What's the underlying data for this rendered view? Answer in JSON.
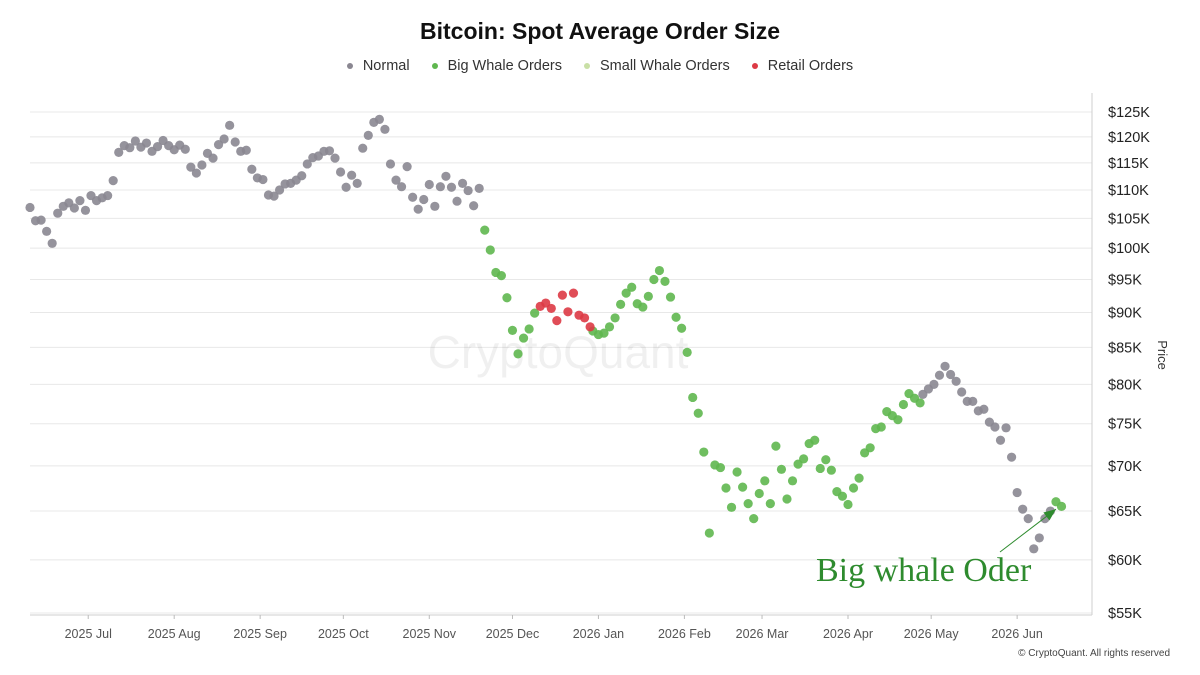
{
  "colors": {
    "normal": "#8a8791",
    "big_whale": "#5fb74f",
    "small_whale": "#c9e0a6",
    "retail": "#dd3a45",
    "grid": "#e8e8e8",
    "annotation": "#2e8b2e"
  },
  "watermark": "CryptoQuant",
  "copyright": "© CryptoQuant. All rights reserved",
  "chart_data": {
    "type": "scatter",
    "title": "Bitcoin: Spot Average Order Size",
    "ylabel": "Price",
    "yscale": "log",
    "ylim": [
      55000,
      125000
    ],
    "y_ticks": [
      55000,
      60000,
      65000,
      70000,
      75000,
      80000,
      85000,
      90000,
      95000,
      100000,
      105000,
      110000,
      115000,
      120000,
      125000
    ],
    "y_tick_labels": [
      "$55K",
      "$60K",
      "$65K",
      "$70K",
      "$75K",
      "$80K",
      "$85K",
      "$90K",
      "$95K",
      "$100K",
      "$105K",
      "$110K",
      "$115K",
      "$120K",
      "$125K"
    ],
    "xlim": [
      "2025-06-10",
      "2026-06-28"
    ],
    "x_ticks": [
      "2025-07-01",
      "2025-08-01",
      "2025-09-01",
      "2025-10-01",
      "2025-11-01",
      "2025-12-01",
      "2026-01-01",
      "2026-02-01",
      "2026-03-01",
      "2026-04-01",
      "2026-05-01",
      "2026-06-01"
    ],
    "x_tick_labels": [
      "2025 Jul",
      "2025 Aug",
      "2025 Sep",
      "2025 Oct",
      "2025 Nov",
      "2025 Dec",
      "2026 Jan",
      "2026 Feb",
      "2026 Mar",
      "2026 Apr",
      "2026 May",
      "2026 Jun"
    ],
    "grid": true,
    "legend_position": "top-center",
    "series": [
      {
        "name": "Normal",
        "color": "#8a8791",
        "points": [
          [
            "2025-06-10",
            106900
          ],
          [
            "2025-06-12",
            104600
          ],
          [
            "2025-06-14",
            104700
          ],
          [
            "2025-06-16",
            102800
          ],
          [
            "2025-06-18",
            100800
          ],
          [
            "2025-06-20",
            105900
          ],
          [
            "2025-06-22",
            107100
          ],
          [
            "2025-06-24",
            107700
          ],
          [
            "2025-06-26",
            106800
          ],
          [
            "2025-06-28",
            108100
          ],
          [
            "2025-06-30",
            106400
          ],
          [
            "2025-07-02",
            109000
          ],
          [
            "2025-07-04",
            108100
          ],
          [
            "2025-07-06",
            108600
          ],
          [
            "2025-07-08",
            109000
          ],
          [
            "2025-07-10",
            111700
          ],
          [
            "2025-07-12",
            117000
          ],
          [
            "2025-07-14",
            118300
          ],
          [
            "2025-07-16",
            117900
          ],
          [
            "2025-07-18",
            119200
          ],
          [
            "2025-07-20",
            118000
          ],
          [
            "2025-07-22",
            118800
          ],
          [
            "2025-07-24",
            117200
          ],
          [
            "2025-07-26",
            118100
          ],
          [
            "2025-07-28",
            119300
          ],
          [
            "2025-07-30",
            118300
          ],
          [
            "2025-08-01",
            117500
          ],
          [
            "2025-08-03",
            118400
          ],
          [
            "2025-08-05",
            117600
          ],
          [
            "2025-08-07",
            114200
          ],
          [
            "2025-08-09",
            113100
          ],
          [
            "2025-08-11",
            114600
          ],
          [
            "2025-08-13",
            116800
          ],
          [
            "2025-08-15",
            115900
          ],
          [
            "2025-08-17",
            118500
          ],
          [
            "2025-08-19",
            119600
          ],
          [
            "2025-08-21",
            122300
          ],
          [
            "2025-08-23",
            119000
          ],
          [
            "2025-08-25",
            117200
          ],
          [
            "2025-08-27",
            117400
          ],
          [
            "2025-08-29",
            113800
          ],
          [
            "2025-08-31",
            112200
          ],
          [
            "2025-09-02",
            111900
          ],
          [
            "2025-09-04",
            109100
          ],
          [
            "2025-09-06",
            108900
          ],
          [
            "2025-09-08",
            110000
          ],
          [
            "2025-09-10",
            111100
          ],
          [
            "2025-09-12",
            111200
          ],
          [
            "2025-09-14",
            111800
          ],
          [
            "2025-09-16",
            112600
          ],
          [
            "2025-09-18",
            114800
          ],
          [
            "2025-09-20",
            116000
          ],
          [
            "2025-09-22",
            116300
          ],
          [
            "2025-09-24",
            117200
          ],
          [
            "2025-09-26",
            117300
          ],
          [
            "2025-09-28",
            115900
          ],
          [
            "2025-09-30",
            113300
          ],
          [
            "2025-10-02",
            110500
          ],
          [
            "2025-10-04",
            112700
          ],
          [
            "2025-10-06",
            111200
          ],
          [
            "2025-10-08",
            117800
          ],
          [
            "2025-10-10",
            120300
          ],
          [
            "2025-10-12",
            122900
          ],
          [
            "2025-10-14",
            123500
          ],
          [
            "2025-10-16",
            121500
          ],
          [
            "2025-10-18",
            114800
          ],
          [
            "2025-10-20",
            111800
          ],
          [
            "2025-10-22",
            110600
          ],
          [
            "2025-10-24",
            114300
          ],
          [
            "2025-10-26",
            108700
          ],
          [
            "2025-10-28",
            106600
          ],
          [
            "2025-10-30",
            108300
          ],
          [
            "2025-11-01",
            111000
          ],
          [
            "2025-11-03",
            107100
          ],
          [
            "2025-11-05",
            110600
          ],
          [
            "2025-11-07",
            112500
          ],
          [
            "2025-11-09",
            110500
          ],
          [
            "2025-11-11",
            108000
          ],
          [
            "2025-11-13",
            111200
          ],
          [
            "2025-11-15",
            109900
          ],
          [
            "2025-11-17",
            107200
          ],
          [
            "2025-11-19",
            110300
          ],
          [
            "2026-04-28",
            78700
          ],
          [
            "2026-04-30",
            79400
          ],
          [
            "2026-05-02",
            80000
          ],
          [
            "2026-05-04",
            81200
          ],
          [
            "2026-05-06",
            82400
          ],
          [
            "2026-05-08",
            81300
          ],
          [
            "2026-05-10",
            80400
          ],
          [
            "2026-05-12",
            79000
          ],
          [
            "2026-05-14",
            77800
          ],
          [
            "2026-05-16",
            77800
          ],
          [
            "2026-05-18",
            76600
          ],
          [
            "2026-05-20",
            76800
          ],
          [
            "2026-05-22",
            75200
          ],
          [
            "2026-05-24",
            74600
          ],
          [
            "2026-05-26",
            73000
          ],
          [
            "2026-05-28",
            74500
          ],
          [
            "2026-05-30",
            71000
          ],
          [
            "2026-06-01",
            67000
          ],
          [
            "2026-06-03",
            65200
          ],
          [
            "2026-06-05",
            64200
          ],
          [
            "2026-06-07",
            61100
          ],
          [
            "2026-06-09",
            62200
          ],
          [
            "2026-06-11",
            64200
          ],
          [
            "2026-06-13",
            65000
          ]
        ]
      },
      {
        "name": "Big Whale Orders",
        "color": "#5fb74f",
        "points": [
          [
            "2025-11-21",
            103000
          ],
          [
            "2025-11-23",
            99700
          ],
          [
            "2025-11-25",
            96100
          ],
          [
            "2025-11-27",
            95600
          ],
          [
            "2025-11-29",
            92200
          ],
          [
            "2025-12-01",
            87400
          ],
          [
            "2025-12-03",
            84100
          ],
          [
            "2025-12-05",
            86300
          ],
          [
            "2025-12-07",
            87600
          ],
          [
            "2025-12-09",
            89900
          ],
          [
            "2025-12-30",
            87300
          ],
          [
            "2026-01-01",
            86800
          ],
          [
            "2026-01-03",
            87000
          ],
          [
            "2026-01-05",
            87900
          ],
          [
            "2026-01-07",
            89200
          ],
          [
            "2026-01-09",
            91200
          ],
          [
            "2026-01-11",
            92900
          ],
          [
            "2026-01-13",
            93800
          ],
          [
            "2026-01-15",
            91300
          ],
          [
            "2026-01-17",
            90800
          ],
          [
            "2026-01-19",
            92400
          ],
          [
            "2026-01-21",
            95000
          ],
          [
            "2026-01-23",
            96400
          ],
          [
            "2026-01-25",
            94700
          ],
          [
            "2026-01-27",
            92300
          ],
          [
            "2026-01-29",
            89300
          ],
          [
            "2026-01-31",
            87700
          ],
          [
            "2026-02-02",
            84300
          ],
          [
            "2026-02-04",
            78300
          ],
          [
            "2026-02-06",
            76300
          ],
          [
            "2026-02-08",
            71600
          ],
          [
            "2026-02-10",
            62700
          ],
          [
            "2026-02-12",
            70100
          ],
          [
            "2026-02-14",
            69800
          ],
          [
            "2026-02-16",
            67500
          ],
          [
            "2026-02-18",
            65400
          ],
          [
            "2026-02-20",
            69300
          ],
          [
            "2026-02-22",
            67600
          ],
          [
            "2026-02-24",
            65800
          ],
          [
            "2026-02-26",
            64200
          ],
          [
            "2026-02-28",
            66900
          ],
          [
            "2026-03-02",
            68300
          ],
          [
            "2026-03-04",
            65800
          ],
          [
            "2026-03-06",
            72300
          ],
          [
            "2026-03-08",
            69600
          ],
          [
            "2026-03-10",
            66300
          ],
          [
            "2026-03-12",
            68300
          ],
          [
            "2026-03-14",
            70200
          ],
          [
            "2026-03-16",
            70800
          ],
          [
            "2026-03-18",
            72600
          ],
          [
            "2026-03-20",
            73000
          ],
          [
            "2026-03-22",
            69700
          ],
          [
            "2026-03-24",
            70700
          ],
          [
            "2026-03-26",
            69500
          ],
          [
            "2026-03-28",
            67100
          ],
          [
            "2026-03-30",
            66600
          ],
          [
            "2026-04-01",
            65700
          ],
          [
            "2026-04-03",
            67500
          ],
          [
            "2026-04-05",
            68600
          ],
          [
            "2026-04-07",
            71500
          ],
          [
            "2026-04-09",
            72100
          ],
          [
            "2026-04-11",
            74400
          ],
          [
            "2026-04-13",
            74600
          ],
          [
            "2026-04-15",
            76500
          ],
          [
            "2026-04-17",
            76000
          ],
          [
            "2026-04-19",
            75500
          ],
          [
            "2026-04-21",
            77400
          ],
          [
            "2026-04-23",
            78800
          ],
          [
            "2026-04-25",
            78200
          ],
          [
            "2026-04-27",
            77600
          ],
          [
            "2026-06-15",
            66000
          ],
          [
            "2026-06-17",
            65500
          ]
        ]
      },
      {
        "name": "Small Whale Orders",
        "color": "#c9e0a6",
        "points": []
      },
      {
        "name": "Retail Orders",
        "color": "#dd3a45",
        "points": [
          [
            "2025-12-11",
            90900
          ],
          [
            "2025-12-13",
            91400
          ],
          [
            "2025-12-15",
            90600
          ],
          [
            "2025-12-17",
            88800
          ],
          [
            "2025-12-19",
            92600
          ],
          [
            "2025-12-21",
            90100
          ],
          [
            "2025-12-23",
            92900
          ],
          [
            "2025-12-25",
            89600
          ],
          [
            "2025-12-27",
            89200
          ],
          [
            "2025-12-29",
            87900
          ]
        ]
      }
    ],
    "annotations": [
      {
        "text": "Big whale Oder",
        "color": "#2e8b2e",
        "arrow_to": [
          "2026-06-15",
          65200
        ]
      }
    ]
  }
}
